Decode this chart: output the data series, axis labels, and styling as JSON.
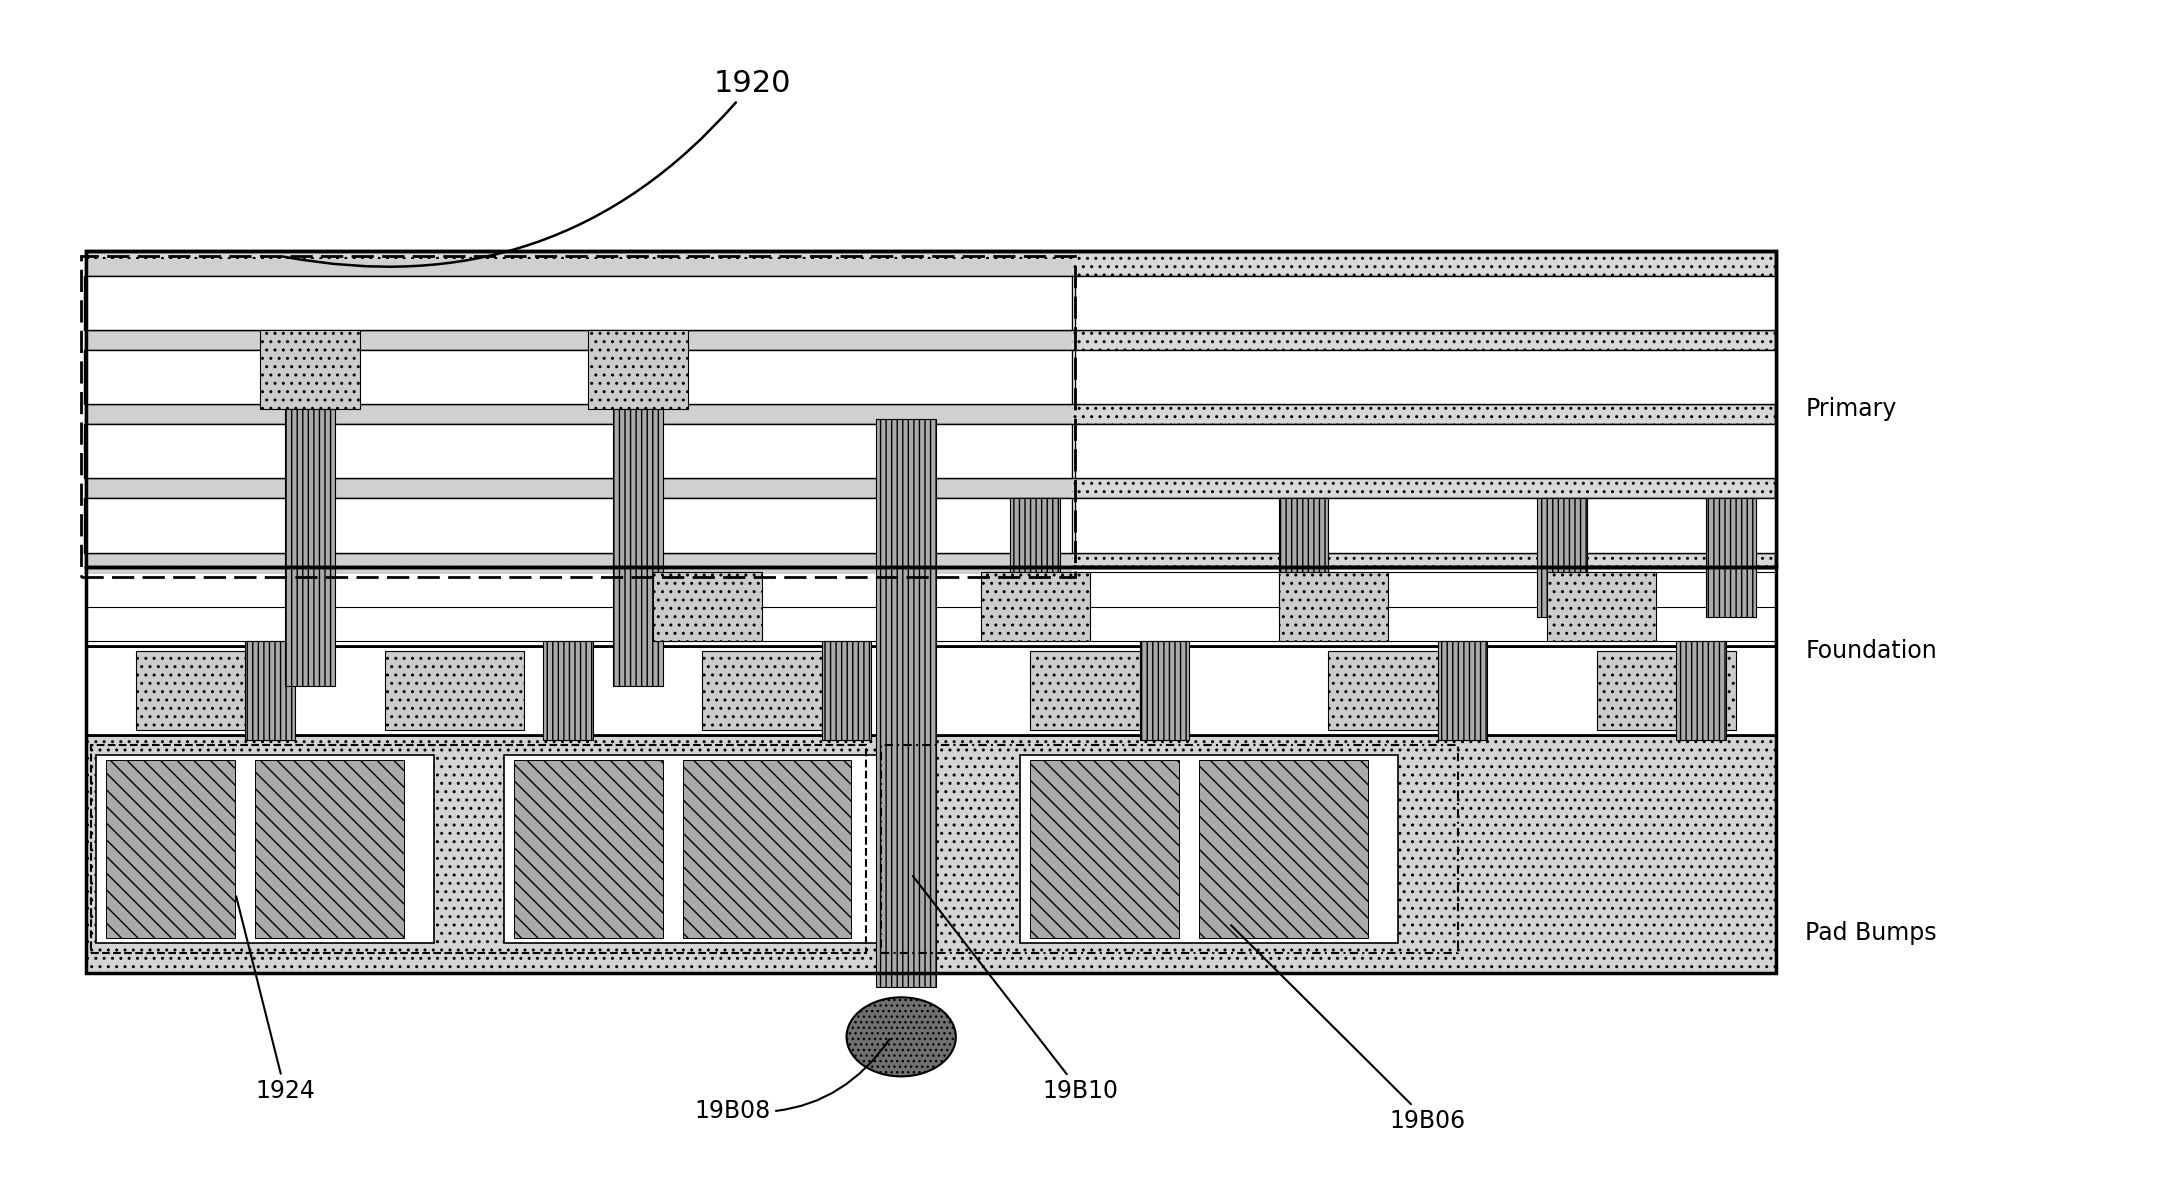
{
  "bg_color": "#ffffff",
  "label_1920": "1920",
  "label_1924": "1924",
  "label_19B08": "19B08",
  "label_19B10": "19B10",
  "label_19B06": "19B06",
  "label_primary": "Primary",
  "label_foundation": "Foundation",
  "label_pad_bumps": "Pad Bumps",
  "figsize": [
    21.66,
    11.97
  ],
  "dpi": 100,
  "black": "#000000",
  "white": "#ffffff",
  "light_stipple": "#e0e0e0",
  "medium_gray": "#b8b8b8",
  "dark_gray": "#888888"
}
